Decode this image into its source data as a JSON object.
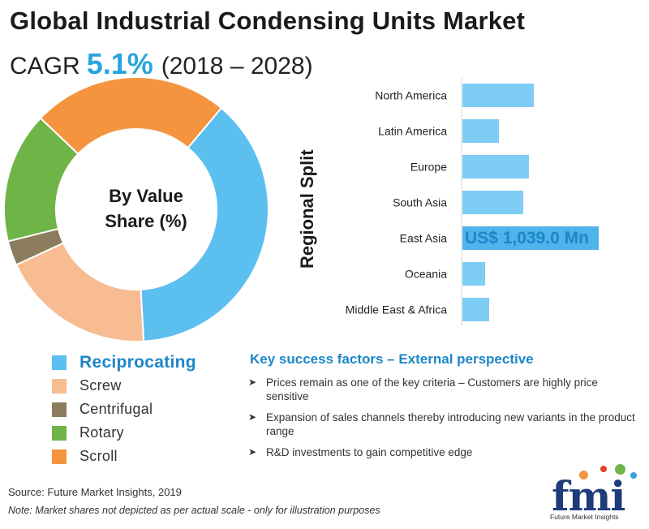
{
  "title": "Global Industrial Condensing Units Market",
  "cagr": {
    "prefix": "CAGR",
    "value": "5.1%",
    "period": "(2018 – 2028)"
  },
  "chart_data": [
    {
      "type": "pie",
      "variant": "donut",
      "center_label": [
        "By Value",
        "Share (%)"
      ],
      "categories": [
        "Reciprocating",
        "Screw",
        "Centrifugal",
        "Rotary",
        "Scroll"
      ],
      "values": [
        38,
        19,
        3,
        16,
        24
      ],
      "colors": [
        "#5bbff0",
        "#f7bc92",
        "#8b7d5e",
        "#6fb446",
        "#f5943f"
      ],
      "legend_placement": "bottom-left",
      "highlighted": "Reciprocating"
    },
    {
      "type": "bar",
      "orientation": "horizontal",
      "ylabel": "Regional Split",
      "categories": [
        "North America",
        "Latin America",
        "Europe",
        "South Asia",
        "East Asia",
        "Oceania",
        "Middle East & Africa"
      ],
      "values": [
        88,
        45,
        82,
        75,
        168,
        28,
        33
      ],
      "highlighted": "East Asia",
      "highlight_label": "US$ 1,039.0 Mn",
      "bar_color": "#7ecdf4",
      "highlight_color": "#4fb3ec",
      "grid": false
    }
  ],
  "key_success_factors": {
    "title": "Key success factors – External perspective",
    "items": [
      "Prices remain as one of the key criteria – Customers are highly price sensitive",
      "Expansion of sales channels thereby introducing new variants in the product range",
      "R&D investments to gain competitive edge"
    ]
  },
  "source": "Source: Future Market Insights, 2019",
  "note": "Note:  Market shares not depicted as per actual scale - only for illustration purposes",
  "logo": {
    "letters": "fmi",
    "tagline": "Future Market Insights"
  },
  "icons": {
    "bullet": "chevron-right-icon"
  }
}
